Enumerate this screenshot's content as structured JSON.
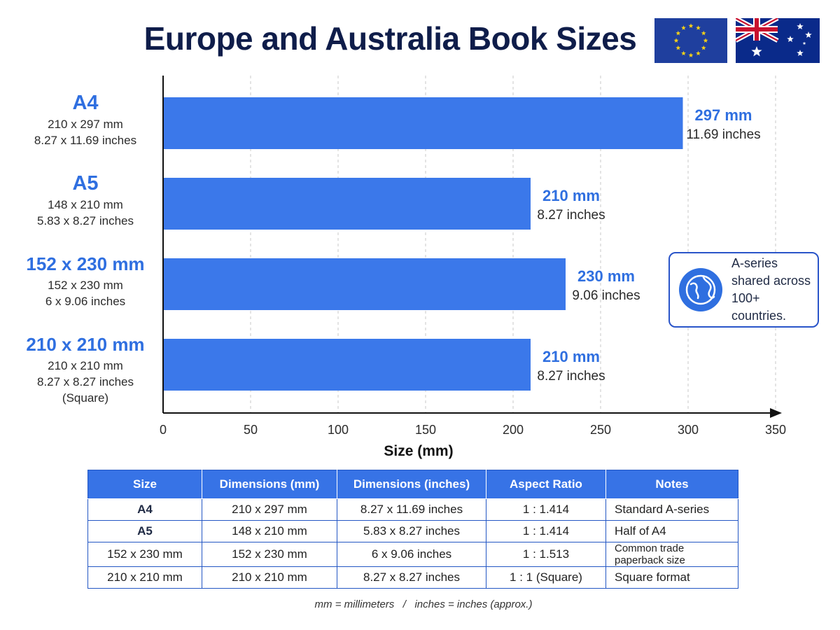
{
  "title": "Europe and Australia Book Sizes",
  "flags": [
    "eu-flag-icon",
    "australia-flag-icon"
  ],
  "chart_data": {
    "type": "bar",
    "orientation": "horizontal",
    "categories": [
      "A4",
      "A5",
      "152 x 230 mm",
      "210 x 210 mm"
    ],
    "category_details": [
      [
        "210 x 297 mm",
        "8.27 x 11.69 inches"
      ],
      [
        "148 x 210 mm",
        "5.83 x 8.27 inches"
      ],
      [
        "152 x 230 mm",
        "6 x 9.06 inches"
      ],
      [
        "210 x 210 mm",
        "8.27 x 8.27 inches",
        "(Square)"
      ]
    ],
    "values": [
      297,
      210,
      230,
      210
    ],
    "value_labels_mm": [
      "297 mm",
      "210 mm",
      "230 mm",
      "210 mm"
    ],
    "value_labels_in": [
      "11.69 inches",
      "8.27 inches",
      "9.06 inches",
      "8.27 inches"
    ],
    "xlabel": "Size (mm)",
    "xlim": [
      0,
      350
    ],
    "xticks": [
      0,
      50,
      100,
      150,
      200,
      250,
      300,
      350
    ],
    "grid": "vertical dashed",
    "bar_color": "#3b78ea"
  },
  "callout": {
    "icon": "globe-icon",
    "text": "A-series shared across 100+ countries."
  },
  "table": {
    "headers": [
      "Size",
      "Dimensions (mm)",
      "Dimensions (inches)",
      "Aspect Ratio",
      "Notes"
    ],
    "rows": [
      [
        "A4",
        "210 x 297 mm",
        "8.27 x 11.69 inches",
        "1 : 1.414",
        "Standard A-series"
      ],
      [
        "A5",
        "148 x 210 mm",
        "5.83 x 8.27 inches",
        "1 : 1.414",
        "Half of A4"
      ],
      [
        "152 x 230 mm",
        "152 x 230 mm",
        "6 x 9.06 inches",
        "1 : 1.513",
        "Common trade paperback size"
      ],
      [
        "210 x 210 mm",
        "210 x 210 mm",
        "8.27 x 8.27 inches",
        "1 : 1 (Square)",
        "Square format"
      ]
    ]
  },
  "footnote": "mm = millimeters   /   inches = inches (approx.)",
  "colors": {
    "accent": "#2f6fe0",
    "header": "#3773e6",
    "title": "#0f1d4a"
  }
}
